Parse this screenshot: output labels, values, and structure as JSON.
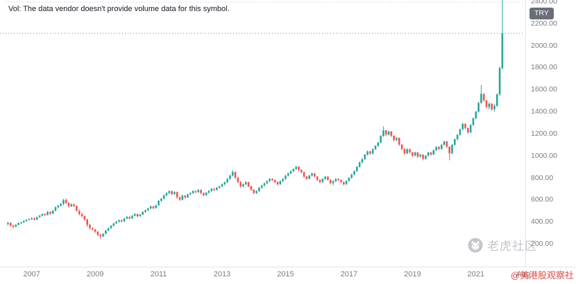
{
  "note": "Vol: The data vendor doesn't provide volume data for this symbol.",
  "currency_badge": "TRY",
  "watermark_text": "老虎社区",
  "credit": "@美港股观察社",
  "current_price": 2110,
  "colors": {
    "up": "#26a69a",
    "down": "#ef5350",
    "axis_text": "#787b86",
    "separator": "#e0e3eb",
    "top_border": "#b8bcc4",
    "price_line": "#26a69a",
    "note_text": "#131722",
    "watermark": "#9598a1",
    "credit": "#e04b49",
    "badge_bg": "#696e79"
  },
  "chart_data": {
    "type": "candlestick",
    "title": "",
    "currency": "TRY",
    "interval": "1M",
    "start_month": "2006-04",
    "grid": "off",
    "legend_position": "none",
    "ylim": [
      150,
      2450
    ],
    "y_ticks": [
      2400,
      2200,
      2000,
      1800,
      1600,
      1400,
      1200,
      1000,
      800,
      600,
      400,
      200
    ],
    "x_ticks": [
      {
        "label": "2007",
        "m": 9
      },
      {
        "label": "2009",
        "m": 33
      },
      {
        "label": "2011",
        "m": 57
      },
      {
        "label": "2013",
        "m": 81
      },
      {
        "label": "2015",
        "m": 105
      },
      {
        "label": "2017",
        "m": 129
      },
      {
        "label": "2019",
        "m": 153
      },
      {
        "label": "2021",
        "m": 177
      },
      {
        "label": "Aug",
        "m": 195
      }
    ],
    "ohlc": [
      [
        380,
        400,
        365,
        390
      ],
      [
        390,
        395,
        355,
        365
      ],
      [
        365,
        375,
        340,
        355
      ],
      [
        355,
        380,
        350,
        372
      ],
      [
        372,
        395,
        368,
        388
      ],
      [
        388,
        402,
        380,
        396
      ],
      [
        396,
        415,
        390,
        408
      ],
      [
        408,
        424,
        400,
        418
      ],
      [
        418,
        430,
        410,
        424
      ],
      [
        424,
        440,
        415,
        432
      ],
      [
        432,
        438,
        412,
        420
      ],
      [
        420,
        448,
        416,
        442
      ],
      [
        442,
        462,
        436,
        456
      ],
      [
        456,
        478,
        450,
        470
      ],
      [
        470,
        476,
        452,
        462
      ],
      [
        462,
        498,
        458,
        490
      ],
      [
        490,
        494,
        462,
        474
      ],
      [
        474,
        508,
        470,
        500
      ],
      [
        500,
        540,
        495,
        532
      ],
      [
        532,
        556,
        520,
        545
      ],
      [
        545,
        572,
        538,
        562
      ],
      [
        562,
        608,
        550,
        598
      ],
      [
        598,
        612,
        560,
        572
      ],
      [
        572,
        580,
        528,
        540
      ],
      [
        540,
        568,
        534,
        558
      ],
      [
        558,
        564,
        532,
        544
      ],
      [
        544,
        548,
        492,
        500
      ],
      [
        500,
        510,
        458,
        470
      ],
      [
        470,
        482,
        440,
        452
      ],
      [
        452,
        460,
        408,
        420
      ],
      [
        420,
        428,
        352,
        372
      ],
      [
        372,
        382,
        328,
        342
      ],
      [
        342,
        352,
        318,
        330
      ],
      [
        330,
        336,
        298,
        310
      ],
      [
        310,
        316,
        268,
        281
      ],
      [
        281,
        295,
        242,
        268
      ],
      [
        268,
        298,
        260,
        291
      ],
      [
        291,
        328,
        286,
        320
      ],
      [
        320,
        348,
        314,
        341
      ],
      [
        341,
        372,
        336,
        364
      ],
      [
        364,
        392,
        358,
        385
      ],
      [
        385,
        408,
        380,
        400
      ],
      [
        400,
        422,
        394,
        414
      ],
      [
        414,
        418,
        392,
        404
      ],
      [
        404,
        436,
        398,
        429
      ],
      [
        429,
        452,
        422,
        445
      ],
      [
        445,
        450,
        420,
        431
      ],
      [
        431,
        462,
        426,
        455
      ],
      [
        455,
        478,
        448,
        470
      ],
      [
        470,
        474,
        440,
        451
      ],
      [
        451,
        472,
        444,
        465
      ],
      [
        465,
        496,
        460,
        489
      ],
      [
        489,
        512,
        482,
        505
      ],
      [
        505,
        528,
        498,
        521
      ],
      [
        521,
        548,
        514,
        540
      ],
      [
        540,
        545,
        512,
        525
      ],
      [
        525,
        556,
        518,
        549
      ],
      [
        549,
        598,
        542,
        590
      ],
      [
        590,
        618,
        580,
        610
      ],
      [
        610,
        648,
        602,
        640
      ],
      [
        640,
        668,
        630,
        660
      ],
      [
        660,
        688,
        650,
        678
      ],
      [
        678,
        684,
        640,
        652
      ],
      [
        652,
        678,
        644,
        670
      ],
      [
        670,
        674,
        608,
        622
      ],
      [
        622,
        630,
        588,
        600
      ],
      [
        600,
        646,
        594,
        638
      ],
      [
        638,
        642,
        610,
        621
      ],
      [
        621,
        656,
        614,
        649
      ],
      [
        649,
        668,
        640,
        661
      ],
      [
        661,
        686,
        652,
        679
      ],
      [
        679,
        684,
        658,
        669
      ],
      [
        669,
        696,
        662,
        689
      ],
      [
        689,
        694,
        650,
        661
      ],
      [
        661,
        666,
        630,
        641
      ],
      [
        641,
        670,
        634,
        664
      ],
      [
        664,
        688,
        656,
        680
      ],
      [
        680,
        706,
        672,
        699
      ],
      [
        699,
        704,
        678,
        689
      ],
      [
        689,
        716,
        682,
        709
      ],
      [
        709,
        728,
        700,
        721
      ],
      [
        721,
        748,
        712,
        740
      ],
      [
        740,
        766,
        730,
        759
      ],
      [
        759,
        796,
        750,
        789
      ],
      [
        789,
        828,
        780,
        820
      ],
      [
        820,
        868,
        812,
        851
      ],
      [
        851,
        856,
        788,
        801
      ],
      [
        801,
        808,
        748,
        761
      ],
      [
        761,
        768,
        708,
        721
      ],
      [
        721,
        748,
        712,
        741
      ],
      [
        741,
        768,
        732,
        760
      ],
      [
        760,
        764,
        712,
        722
      ],
      [
        722,
        728,
        680,
        691
      ],
      [
        691,
        696,
        650,
        661
      ],
      [
        661,
        686,
        652,
        679
      ],
      [
        679,
        716,
        670,
        709
      ],
      [
        709,
        736,
        700,
        729
      ],
      [
        729,
        756,
        720,
        749
      ],
      [
        749,
        776,
        740,
        769
      ],
      [
        769,
        796,
        760,
        789
      ],
      [
        789,
        794,
        768,
        779
      ],
      [
        779,
        784,
        750,
        761
      ],
      [
        761,
        766,
        728,
        741
      ],
      [
        741,
        776,
        734,
        769
      ],
      [
        769,
        796,
        760,
        789
      ],
      [
        789,
        826,
        780,
        819
      ],
      [
        819,
        846,
        810,
        839
      ],
      [
        839,
        866,
        830,
        859
      ],
      [
        859,
        886,
        850,
        879
      ],
      [
        879,
        908,
        870,
        899
      ],
      [
        899,
        904,
        858,
        871
      ],
      [
        871,
        876,
        838,
        851
      ],
      [
        851,
        856,
        798,
        811
      ],
      [
        811,
        816,
        778,
        791
      ],
      [
        791,
        826,
        784,
        819
      ],
      [
        819,
        846,
        810,
        839
      ],
      [
        839,
        844,
        800,
        811
      ],
      [
        811,
        816,
        768,
        781
      ],
      [
        781,
        786,
        748,
        761
      ],
      [
        761,
        796,
        752,
        789
      ],
      [
        789,
        816,
        780,
        809
      ],
      [
        809,
        814,
        772,
        781
      ],
      [
        781,
        786,
        738,
        751
      ],
      [
        751,
        776,
        730,
        769
      ],
      [
        769,
        796,
        760,
        789
      ],
      [
        789,
        794,
        768,
        779
      ],
      [
        779,
        784,
        750,
        761
      ],
      [
        761,
        766,
        728,
        741
      ],
      [
        741,
        776,
        734,
        771
      ],
      [
        771,
        806,
        764,
        799
      ],
      [
        799,
        836,
        792,
        829
      ],
      [
        829,
        866,
        820,
        859
      ],
      [
        859,
        906,
        852,
        899
      ],
      [
        899,
        946,
        890,
        939
      ],
      [
        939,
        976,
        930,
        969
      ],
      [
        969,
        1016,
        960,
        1009
      ],
      [
        1009,
        1046,
        1000,
        1039
      ],
      [
        1039,
        1044,
        1008,
        1019
      ],
      [
        1019,
        1066,
        1012,
        1059
      ],
      [
        1059,
        1096,
        1050,
        1089
      ],
      [
        1089,
        1126,
        1080,
        1119
      ],
      [
        1119,
        1186,
        1110,
        1179
      ],
      [
        1179,
        1266,
        1170,
        1229
      ],
      [
        1229,
        1234,
        1178,
        1191
      ],
      [
        1191,
        1226,
        1182,
        1219
      ],
      [
        1219,
        1224,
        1168,
        1181
      ],
      [
        1181,
        1186,
        1128,
        1141
      ],
      [
        1141,
        1168,
        1132,
        1161
      ],
      [
        1161,
        1166,
        1088,
        1101
      ],
      [
        1101,
        1106,
        1048,
        1061
      ],
      [
        1061,
        1066,
        1008,
        1021
      ],
      [
        1021,
        1066,
        1014,
        1059
      ],
      [
        1059,
        1064,
        1018,
        1031
      ],
      [
        1031,
        1036,
        988,
        1001
      ],
      [
        1001,
        1036,
        994,
        1029
      ],
      [
        1029,
        1034,
        978,
        991
      ],
      [
        991,
        1016,
        982,
        1009
      ],
      [
        1009,
        1014,
        958,
        971
      ],
      [
        971,
        1006,
        964,
        999
      ],
      [
        999,
        1036,
        992,
        1029
      ],
      [
        1029,
        1034,
        998,
        1011
      ],
      [
        1011,
        1056,
        1004,
        1049
      ],
      [
        1049,
        1086,
        1040,
        1079
      ],
      [
        1079,
        1084,
        1048,
        1061
      ],
      [
        1061,
        1106,
        1054,
        1099
      ],
      [
        1099,
        1136,
        1090,
        1129
      ],
      [
        1129,
        1134,
        1068,
        1081
      ],
      [
        1081,
        1086,
        958,
        1021
      ],
      [
        1021,
        1106,
        1014,
        1099
      ],
      [
        1099,
        1156,
        1090,
        1149
      ],
      [
        1149,
        1196,
        1140,
        1189
      ],
      [
        1189,
        1246,
        1180,
        1239
      ],
      [
        1239,
        1296,
        1230,
        1289
      ],
      [
        1289,
        1294,
        1238,
        1251
      ],
      [
        1251,
        1256,
        1198,
        1211
      ],
      [
        1211,
        1286,
        1204,
        1279
      ],
      [
        1279,
        1346,
        1270,
        1339
      ],
      [
        1339,
        1406,
        1330,
        1399
      ],
      [
        1399,
        1486,
        1390,
        1479
      ],
      [
        1479,
        1641,
        1470,
        1561
      ],
      [
        1561,
        1566,
        1488,
        1501
      ],
      [
        1501,
        1506,
        1428,
        1441
      ],
      [
        1441,
        1486,
        1420,
        1471
      ],
      [
        1471,
        1476,
        1408,
        1421
      ],
      [
        1421,
        1466,
        1402,
        1452
      ],
      [
        1452,
        1566,
        1444,
        1556
      ],
      [
        1556,
        1810,
        1540,
        1795
      ],
      [
        1795,
        2450,
        1780,
        2110
      ]
    ]
  }
}
